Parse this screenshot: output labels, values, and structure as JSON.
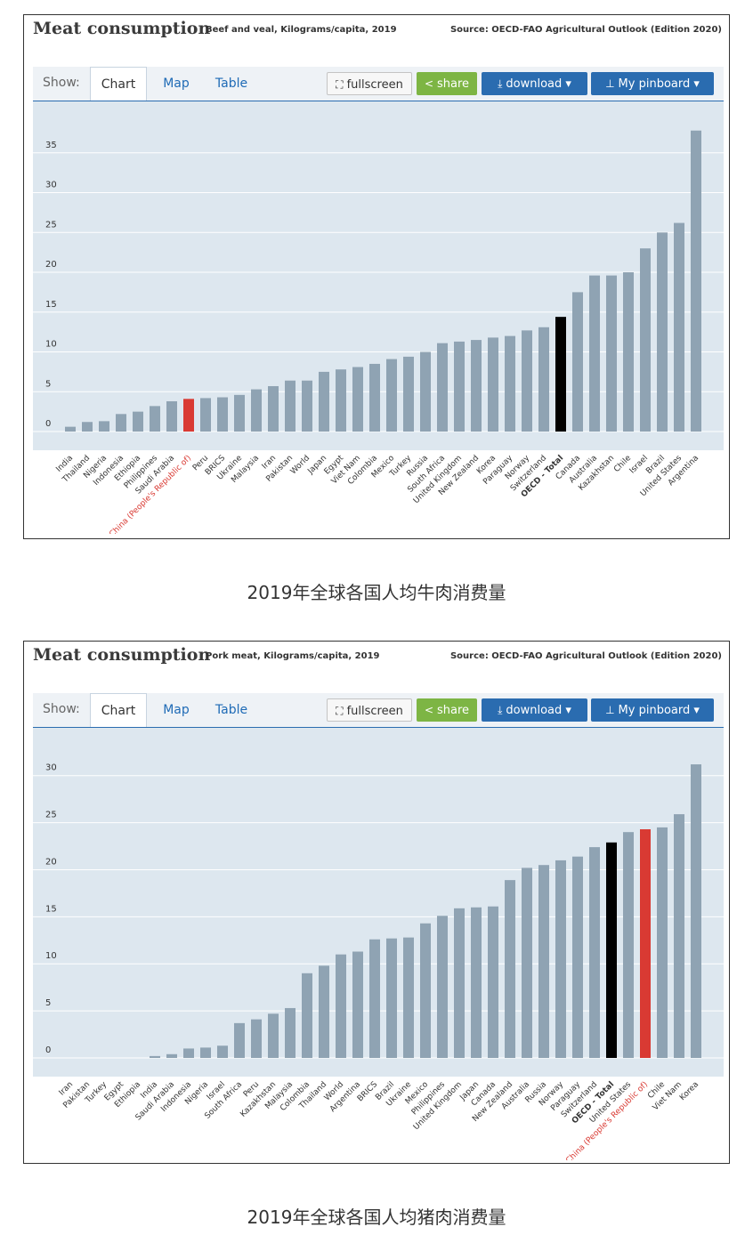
{
  "header": {
    "title": "Meat consumption",
    "source": "Source: OECD-FAO Agricultural Outlook (Edition 2020)"
  },
  "toolbar": {
    "show_label": "Show:",
    "tabs": [
      "Chart",
      "Map",
      "Table"
    ],
    "fullscreen_label": "fullscreen",
    "share_label": "share",
    "download_label": "download",
    "pinboard_label": "My pinboard"
  },
  "colors": {
    "bar": "#8fa3b3",
    "oecd": "#000000",
    "china": "#d93a33",
    "plot_bg": "#dde7ef",
    "grid": "#ffffff",
    "accent": "#2a6cb0",
    "share": "#7db544"
  },
  "captions": {
    "beef": "2019年全球各国人均牛肉消费量",
    "pork": "2019年全球各国人均猪肉消费量"
  },
  "chart_data": [
    {
      "type": "bar",
      "subtitle": "Beef and veal, Kilograms/capita, 2019",
      "ylim": [
        0,
        39
      ],
      "yticks": [
        0,
        5,
        10,
        15,
        20,
        25,
        30,
        35
      ],
      "grid": true,
      "categories": [
        "India",
        "Thailand",
        "Nigeria",
        "Indonesia",
        "Ethiopia",
        "Philippines",
        "Saudi Arabia",
        "China (People's Republic of)",
        "Peru",
        "BRICS",
        "Ukraine",
        "Malaysia",
        "Iran",
        "Pakistan",
        "World",
        "Japan",
        "Egypt",
        "Viet Nam",
        "Colombia",
        "Mexico",
        "Turkey",
        "Russia",
        "South Africa",
        "United Kingdom",
        "New Zealand",
        "Korea",
        "Paraguay",
        "Norway",
        "Switzerland",
        "OECD - Total",
        "Canada",
        "Australia",
        "Kazakhstan",
        "Chile",
        "Israel",
        "Brazil",
        "United States",
        "Argentina"
      ],
      "values": [
        0.6,
        1.2,
        1.3,
        2.2,
        2.5,
        3.2,
        3.8,
        4.1,
        4.2,
        4.3,
        4.6,
        5.3,
        5.7,
        6.4,
        6.4,
        7.5,
        7.8,
        8.1,
        8.5,
        9.1,
        9.4,
        10.0,
        11.1,
        11.3,
        11.5,
        11.8,
        12.0,
        12.7,
        13.1,
        14.4,
        17.5,
        19.6,
        19.6,
        20.0,
        23.0,
        25.0,
        26.2,
        37.8
      ],
      "highlight": {
        "OECD - Total": "oecd",
        "China (People's Republic of)": "china"
      }
    },
    {
      "type": "bar",
      "subtitle": "Pork meat, Kilograms/capita, 2019",
      "ylim": [
        0,
        33
      ],
      "yticks": [
        0,
        5,
        10,
        15,
        20,
        25,
        30
      ],
      "grid": true,
      "categories": [
        "Iran",
        "Pakistan",
        "Turkey",
        "Egypt",
        "Ethiopia",
        "India",
        "Saudi Arabia",
        "Indonesia",
        "Nigeria",
        "Israel",
        "South Africa",
        "Peru",
        "Kazakhstan",
        "Malaysia",
        "Colombia",
        "Thailand",
        "World",
        "Argentina",
        "BRICS",
        "Brazil",
        "Ukraine",
        "Mexico",
        "Philippines",
        "United Kingdom",
        "Japan",
        "Canada",
        "New Zealand",
        "Australia",
        "Russia",
        "Norway",
        "Paraguay",
        "Switzerland",
        "OECD - Total",
        "United States",
        "China (People's Republic of)",
        "Chile",
        "Viet Nam",
        "Korea"
      ],
      "values": [
        0,
        0,
        0,
        0,
        0,
        0.2,
        0.4,
        1.0,
        1.1,
        1.3,
        3.7,
        4.1,
        4.7,
        5.3,
        9.0,
        9.8,
        11.0,
        11.3,
        12.6,
        12.7,
        12.8,
        14.3,
        15.1,
        15.9,
        16.0,
        16.1,
        18.9,
        20.2,
        20.5,
        21.0,
        21.4,
        22.4,
        22.9,
        24.0,
        24.3,
        24.5,
        25.9,
        31.2
      ],
      "highlight": {
        "OECD - Total": "oecd",
        "China (People's Republic of)": "china"
      }
    }
  ]
}
